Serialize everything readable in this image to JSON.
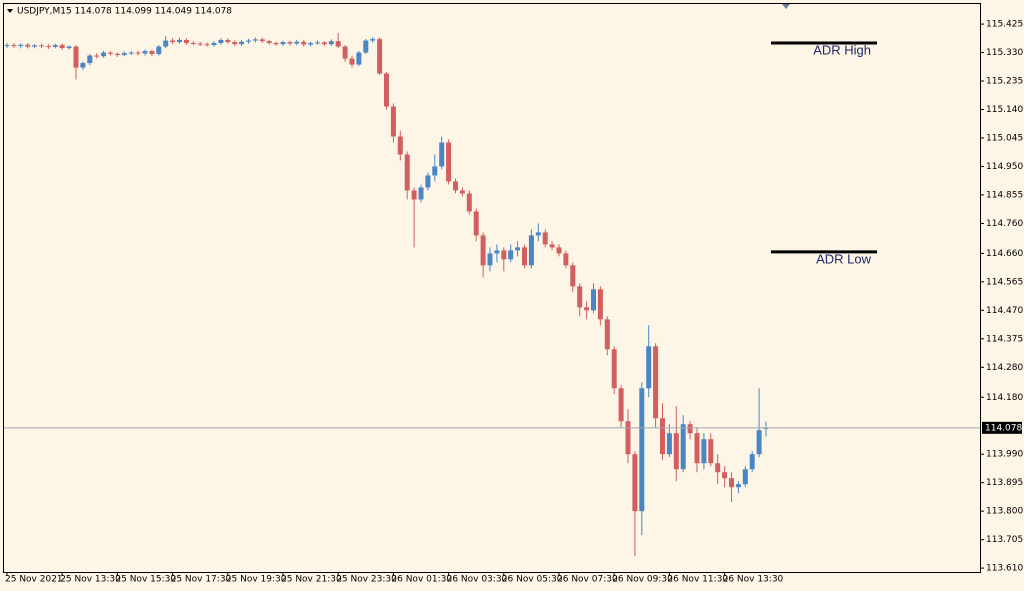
{
  "chart_data": {
    "type": "candlestick",
    "title": "USDJPY,M15  114.078 114.099 114.049 114.078",
    "up_color": "#4a86c5",
    "down_color": "#d15f5f",
    "categories": [
      "25 Nov 2021",
      null,
      null,
      null,
      null,
      null,
      null,
      null,
      "25 Nov 13:30",
      null,
      null,
      null,
      null,
      null,
      null,
      null,
      "25 Nov 15:30",
      null,
      null,
      null,
      null,
      null,
      null,
      null,
      "25 Nov 17:30",
      null,
      null,
      null,
      null,
      null,
      null,
      null,
      "25 Nov 19:30",
      null,
      null,
      null,
      null,
      null,
      null,
      null,
      "25 Nov 21:30",
      null,
      null,
      null,
      null,
      null,
      null,
      null,
      "25 Nov 23:30",
      null,
      null,
      null,
      null,
      null,
      null,
      null,
      "26 Nov 01:30",
      null,
      null,
      null,
      null,
      null,
      null,
      null,
      "26 Nov 03:30",
      null,
      null,
      null,
      null,
      null,
      null,
      null,
      "26 Nov 05:30",
      null,
      null,
      null,
      null,
      null,
      null,
      null,
      "26 Nov 07:30",
      null,
      null,
      null,
      null,
      null,
      null,
      null,
      "26 Nov 09:30",
      null,
      null,
      null,
      null,
      null,
      null,
      null,
      "26 Nov 11:30",
      null,
      null,
      null,
      null,
      null,
      null,
      null,
      "26 Nov 13:30",
      null,
      null,
      null,
      null,
      null,
      null
    ],
    "open": [
      115.352,
      115.355,
      115.352,
      115.356,
      115.35,
      115.354,
      115.352,
      115.349,
      115.355,
      115.345,
      115.35,
      115.28,
      115.295,
      115.32,
      115.318,
      115.33,
      115.326,
      115.322,
      115.328,
      115.33,
      115.327,
      115.335,
      115.325,
      115.35,
      115.37,
      115.365,
      115.372,
      115.362,
      115.36,
      115.358,
      115.355,
      115.362,
      115.372,
      115.365,
      115.358,
      115.366,
      115.37,
      115.374,
      115.368,
      115.362,
      115.358,
      115.365,
      115.36,
      115.366,
      115.357,
      115.362,
      115.364,
      115.358,
      115.368,
      115.35,
      115.31,
      115.29,
      115.33,
      115.37,
      115.375,
      115.26,
      115.15,
      115.05,
      114.99,
      114.87,
      114.84,
      114.88,
      114.92,
      114.95,
      115.03,
      114.9,
      114.87,
      114.86,
      114.8,
      114.72,
      114.62,
      114.66,
      114.67,
      114.64,
      114.67,
      114.68,
      114.62,
      114.72,
      114.73,
      114.69,
      114.68,
      114.66,
      114.62,
      114.55,
      114.48,
      114.47,
      114.54,
      114.44,
      114.34,
      114.21,
      114.1,
      113.99,
      113.8,
      114.21,
      114.35,
      114.11,
      113.99,
      114.06,
      113.94,
      114.09,
      114.06,
      113.96,
      114.04,
      113.96,
      113.93,
      113.91,
      113.88,
      113.89,
      113.94,
      113.99,
      114.078
    ],
    "high": [
      115.362,
      115.362,
      115.36,
      115.362,
      115.358,
      115.36,
      115.358,
      115.36,
      115.36,
      115.354,
      115.355,
      115.3,
      115.325,
      115.328,
      115.336,
      115.334,
      115.33,
      115.334,
      115.336,
      115.336,
      115.34,
      115.34,
      115.355,
      115.385,
      115.378,
      115.38,
      115.378,
      115.368,
      115.366,
      115.364,
      115.368,
      115.378,
      115.378,
      115.37,
      115.372,
      115.376,
      115.38,
      115.38,
      115.372,
      115.366,
      115.37,
      115.37,
      115.372,
      115.372,
      115.366,
      115.37,
      115.368,
      115.374,
      115.395,
      115.355,
      115.32,
      115.335,
      115.375,
      115.382,
      115.38,
      115.265,
      115.16,
      115.07,
      115.0,
      114.88,
      114.89,
      114.93,
      114.99,
      115.05,
      115.04,
      114.91,
      114.88,
      114.87,
      114.81,
      114.73,
      114.68,
      114.69,
      114.68,
      114.69,
      114.7,
      114.69,
      114.74,
      114.76,
      114.74,
      114.7,
      114.69,
      114.67,
      114.63,
      114.56,
      114.5,
      114.56,
      114.55,
      114.45,
      114.35,
      114.22,
      114.14,
      114.0,
      114.23,
      114.42,
      114.36,
      114.16,
      114.09,
      114.15,
      114.12,
      114.1,
      114.08,
      114.06,
      114.06,
      113.99,
      113.95,
      113.93,
      113.9,
      113.95,
      114.0,
      114.21,
      114.099
    ],
    "low": [
      115.345,
      115.346,
      115.344,
      115.344,
      115.344,
      115.345,
      115.342,
      115.344,
      115.338,
      115.34,
      115.24,
      115.272,
      115.288,
      115.31,
      115.312,
      115.32,
      115.316,
      115.318,
      115.322,
      115.32,
      115.32,
      115.318,
      115.32,
      115.345,
      115.358,
      115.36,
      115.355,
      115.354,
      115.352,
      115.35,
      115.35,
      115.356,
      115.36,
      115.352,
      115.352,
      115.36,
      115.364,
      115.362,
      115.356,
      115.352,
      115.352,
      115.354,
      115.354,
      115.35,
      115.35,
      115.356,
      115.352,
      115.352,
      115.345,
      115.3,
      115.28,
      115.285,
      115.325,
      115.362,
      115.255,
      115.14,
      115.03,
      114.97,
      114.84,
      114.68,
      114.83,
      114.87,
      114.9,
      114.94,
      114.89,
      114.86,
      114.85,
      114.79,
      114.7,
      114.58,
      114.6,
      114.63,
      114.6,
      114.63,
      114.65,
      114.61,
      114.61,
      114.7,
      114.68,
      114.67,
      114.65,
      114.61,
      114.53,
      114.45,
      114.44,
      114.46,
      114.42,
      114.32,
      114.19,
      114.08,
      113.96,
      113.65,
      113.72,
      114.18,
      114.08,
      113.97,
      113.98,
      113.9,
      113.93,
      114.04,
      113.93,
      113.94,
      113.95,
      113.89,
      113.88,
      113.83,
      113.86,
      113.88,
      113.93,
      113.98,
      114.049
    ],
    "close": [
      115.355,
      115.352,
      115.356,
      115.35,
      115.354,
      115.352,
      115.349,
      115.355,
      115.345,
      115.35,
      115.28,
      115.295,
      115.32,
      115.318,
      115.33,
      115.326,
      115.322,
      115.328,
      115.33,
      115.327,
      115.335,
      115.325,
      115.35,
      115.37,
      115.365,
      115.372,
      115.362,
      115.36,
      115.358,
      115.355,
      115.362,
      115.372,
      115.365,
      115.358,
      115.366,
      115.37,
      115.374,
      115.368,
      115.362,
      115.358,
      115.365,
      115.36,
      115.366,
      115.357,
      115.362,
      115.364,
      115.358,
      115.368,
      115.35,
      115.31,
      115.29,
      115.33,
      115.37,
      115.375,
      115.26,
      115.15,
      115.05,
      114.99,
      114.87,
      114.84,
      114.88,
      114.92,
      114.95,
      115.03,
      114.9,
      114.87,
      114.86,
      114.8,
      114.72,
      114.62,
      114.66,
      114.67,
      114.64,
      114.67,
      114.68,
      114.62,
      114.72,
      114.73,
      114.69,
      114.68,
      114.66,
      114.62,
      114.55,
      114.48,
      114.47,
      114.54,
      114.44,
      114.34,
      114.21,
      114.1,
      113.99,
      113.8,
      114.21,
      114.35,
      114.11,
      113.99,
      114.06,
      113.94,
      114.09,
      114.06,
      113.96,
      114.04,
      113.96,
      113.93,
      113.91,
      113.88,
      113.89,
      113.94,
      113.99,
      114.07,
      114.078
    ],
    "ylim": [
      113.597,
      115.492
    ],
    "yticks": [
      115.425,
      {
        "value": 115.33,
        "label": "115.330"
      },
      115.235,
      {
        "value": 115.14,
        "label": "115.140"
      },
      115.045,
      {
        "value": 114.95,
        "label": "114.950"
      },
      114.855,
      {
        "value": 114.76,
        "label": "114.760"
      },
      {
        "value": 114.66,
        "label": "114.660"
      },
      114.565,
      {
        "value": 114.47,
        "label": "114.470"
      },
      114.375,
      {
        "value": 114.28,
        "label": "114.280"
      },
      {
        "value": 114.18,
        "label": "114.180"
      },
      {
        "value": 113.99,
        "label": "113.990"
      },
      113.895,
      {
        "value": 113.8,
        "label": "113.800"
      },
      113.705,
      {
        "value": 113.61,
        "label": "113.610"
      }
    ],
    "annotations": [
      {
        "text": "ADR High",
        "value": 115.362
      },
      {
        "text": "ADR Low",
        "value": 114.665
      }
    ]
  }
}
